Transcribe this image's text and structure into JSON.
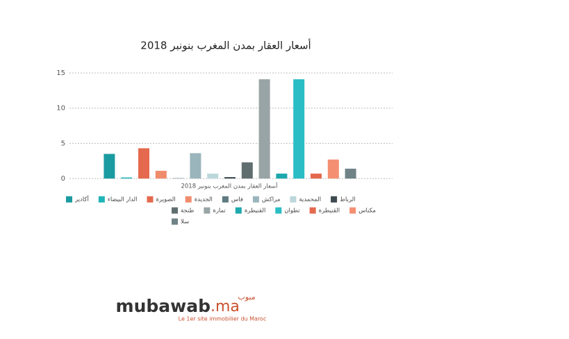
{
  "chart_data": {
    "type": "bar",
    "title": "أسعار العقار بمدن المغرب بنونبر 2018",
    "x_label": "أسعار العقار بمدن المغرب بنونبر 2018",
    "categories": [
      "أكادير",
      "الدار البيضاء",
      "الصويرة",
      "الجديدة",
      "فاس",
      "مراكش",
      "المحمدية",
      "الرباط",
      "طنجة",
      "تمارة",
      "القنيطرة",
      "تطوان",
      "القنيطرة",
      "مكناس",
      "سلا"
    ],
    "values": [
      3.5,
      0.15,
      4.3,
      1.1,
      0.05,
      3.6,
      0.7,
      0.2,
      2.3,
      14.1,
      0.7,
      14.1,
      0.7,
      2.7,
      1.4
    ],
    "colors": [
      "#1a9ba1",
      "#1fb4b8",
      "#e5694e",
      "#f08c6c",
      "#5f7a80",
      "#9ab5bb",
      "#bcd7db",
      "#3d4a4f",
      "#606e70",
      "#98a4a5",
      "#1da8ad",
      "#2abdc4",
      "#e5694e",
      "#f48f72",
      "#6f8387"
    ],
    "ylim": [
      0,
      15
    ],
    "yticks": [
      0,
      5,
      10,
      15
    ],
    "grid": true,
    "legend": "bottom"
  },
  "logo": {
    "arabic": "مبوب",
    "name": "mubawab",
    "tld": ".ma",
    "tagline": "Le 1er site immobilier du Maroc"
  }
}
